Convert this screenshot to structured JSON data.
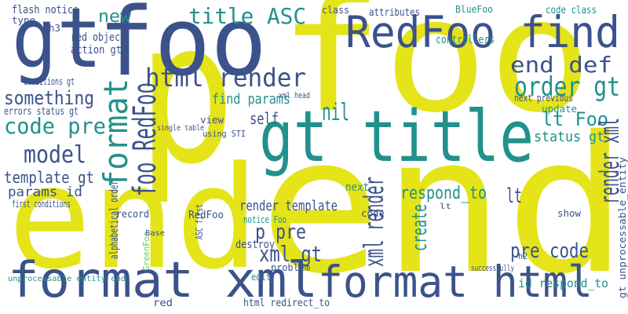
{
  "words": [
    "end",
    "end",
    "p",
    "foo",
    "foo",
    "gt",
    "RedFoo find",
    "gt title",
    "format xml",
    "format html",
    "html render",
    "title ASC",
    "new",
    "format",
    "foo RedFoo",
    "end def",
    "order gt",
    "something",
    "code pre",
    "model",
    "template gt",
    "params id",
    "find params",
    "self",
    "nil",
    "lt Foo",
    "status gt",
    "render xml",
    "respond_to",
    "render template",
    "p pre",
    "xml render",
    "xml gt",
    "pre code",
    "id respond_to",
    "lt",
    "create",
    "update",
    "gt unprocessable_entity",
    "red object",
    "action gt",
    "flash notice",
    "controllers",
    "class",
    "attributes",
    "BlueFoo",
    "code class",
    "destroy",
    "problem",
    "next",
    "record",
    "RedFoo",
    "alphabetical order",
    "show",
    "red",
    "html redirect_to",
    "next previous",
    "view",
    "xml head",
    "errors status gt",
    "conditions gt",
    "type",
    "h3",
    "edit",
    "code",
    "notice Foo",
    "unprocessable entity end",
    "h2",
    "ASC first",
    "GreenFoo",
    "successfully",
    "first conditions",
    "using STI",
    "single table",
    "Base",
    "lt"
  ]
}
